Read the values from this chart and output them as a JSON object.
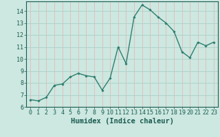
{
  "x": [
    0,
    1,
    2,
    3,
    4,
    5,
    6,
    7,
    8,
    9,
    10,
    11,
    12,
    13,
    14,
    15,
    16,
    17,
    18,
    19,
    20,
    21,
    22,
    23
  ],
  "y": [
    6.6,
    6.5,
    6.8,
    7.8,
    7.9,
    8.5,
    8.8,
    8.6,
    8.5,
    7.4,
    8.4,
    11.0,
    9.6,
    13.5,
    14.5,
    14.1,
    13.5,
    13.0,
    12.3,
    10.6,
    10.1,
    11.4,
    11.1,
    11.4
  ],
  "line_color": "#2e7d6e",
  "marker": "D",
  "marker_size": 1.8,
  "line_width": 1.0,
  "bg_color": "#cce8e0",
  "plot_bg_color": "#cce8e0",
  "grid_color": "#aacfc8",
  "grid_color_v": "#e8b8b8",
  "xlabel": "Humidex (Indice chaleur)",
  "xlabel_fontsize": 7.5,
  "ylim": [
    6,
    14.8
  ],
  "xlim": [
    -0.5,
    23.5
  ],
  "yticks": [
    6,
    7,
    8,
    9,
    10,
    11,
    12,
    13,
    14
  ],
  "xticks": [
    0,
    1,
    2,
    3,
    4,
    5,
    6,
    7,
    8,
    9,
    10,
    11,
    12,
    13,
    14,
    15,
    16,
    17,
    18,
    19,
    20,
    21,
    22,
    23
  ],
  "tick_fontsize": 6,
  "tick_color": "#1a5a50",
  "spine_color": "#1a5a50"
}
